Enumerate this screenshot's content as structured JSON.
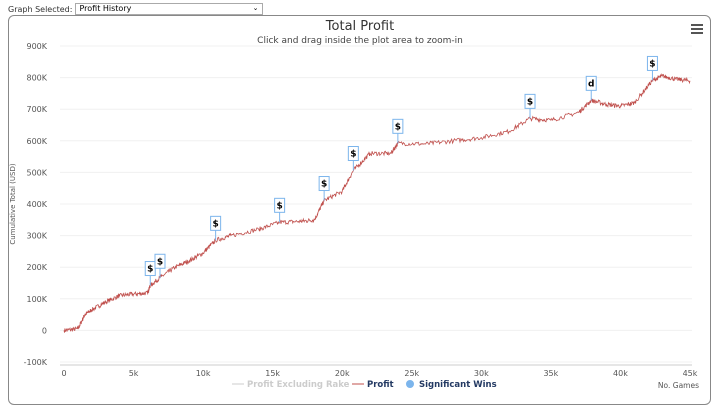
{
  "header": {
    "graph_selected_label": "Graph Selected:",
    "graph_selected_value": "Profit History"
  },
  "chart_data": {
    "type": "line",
    "title": "Total Profit",
    "subtitle": "Click and drag inside the plot area to zoom-in",
    "ylabel": "Cumulative Total (USD)",
    "xlabel": "No. Games",
    "xlim": [
      0,
      45000
    ],
    "ylim": [
      -100000,
      900000
    ],
    "xticks": [
      0,
      5000,
      10000,
      15000,
      20000,
      25000,
      30000,
      35000,
      40000,
      45000
    ],
    "xtick_labels": [
      "0",
      "5k",
      "10k",
      "15k",
      "20k",
      "25k",
      "30k",
      "35k",
      "40k",
      "45k"
    ],
    "yticks": [
      -100000,
      0,
      100000,
      200000,
      300000,
      400000,
      500000,
      600000,
      700000,
      800000,
      900000
    ],
    "ytick_labels": [
      "-100K",
      "0",
      "100K",
      "200K",
      "300K",
      "400K",
      "500K",
      "600K",
      "700K",
      "800K",
      "900K"
    ],
    "grid": true,
    "legend_placement": "bottom",
    "colors": {
      "profit": "#c0504d",
      "excl_rake": "#cccccc",
      "wins": "#7cb5ec"
    },
    "series": [
      {
        "name": "Profit Excluding Rake",
        "visible": false,
        "x": [],
        "y": []
      },
      {
        "name": "Profit",
        "x": [
          0,
          1000,
          1500,
          2000,
          3000,
          4000,
          5000,
          6000,
          6200,
          7000,
          8000,
          9000,
          10000,
          10900,
          12000,
          14000,
          15500,
          17000,
          18000,
          18700,
          20000,
          20800,
          22000,
          23500,
          24000,
          26000,
          28000,
          30000,
          32000,
          33500,
          35000,
          37000,
          37900,
          39000,
          40000,
          41000,
          42300,
          43000,
          44000,
          45000
        ],
        "y": [
          0,
          5000,
          50000,
          65000,
          90000,
          110000,
          115000,
          118000,
          142000,
          170000,
          200000,
          220000,
          245000,
          285000,
          300000,
          320000,
          342000,
          345000,
          350000,
          411000,
          440000,
          506000,
          560000,
          560000,
          592000,
          590000,
          600000,
          610000,
          630000,
          671000,
          665000,
          690000,
          728000,
          715000,
          710000,
          720000,
          791000,
          805000,
          795000,
          790000
        ]
      },
      {
        "name": "Significant Wins",
        "flags": [
          {
            "x": 6200,
            "y": 142000,
            "text": "$"
          },
          {
            "x": 6900,
            "y": 165000,
            "text": "$"
          },
          {
            "x": 10900,
            "y": 285000,
            "text": "$"
          },
          {
            "x": 15500,
            "y": 342000,
            "text": "$"
          },
          {
            "x": 18700,
            "y": 411000,
            "text": "$"
          },
          {
            "x": 20800,
            "y": 506000,
            "text": "$"
          },
          {
            "x": 24000,
            "y": 592000,
            "text": "$"
          },
          {
            "x": 33500,
            "y": 671000,
            "text": "$"
          },
          {
            "x": 37900,
            "y": 728000,
            "text": "d"
          },
          {
            "x": 42300,
            "y": 791000,
            "text": "$"
          }
        ]
      }
    ]
  },
  "menu_icon": "hamburger-icon"
}
